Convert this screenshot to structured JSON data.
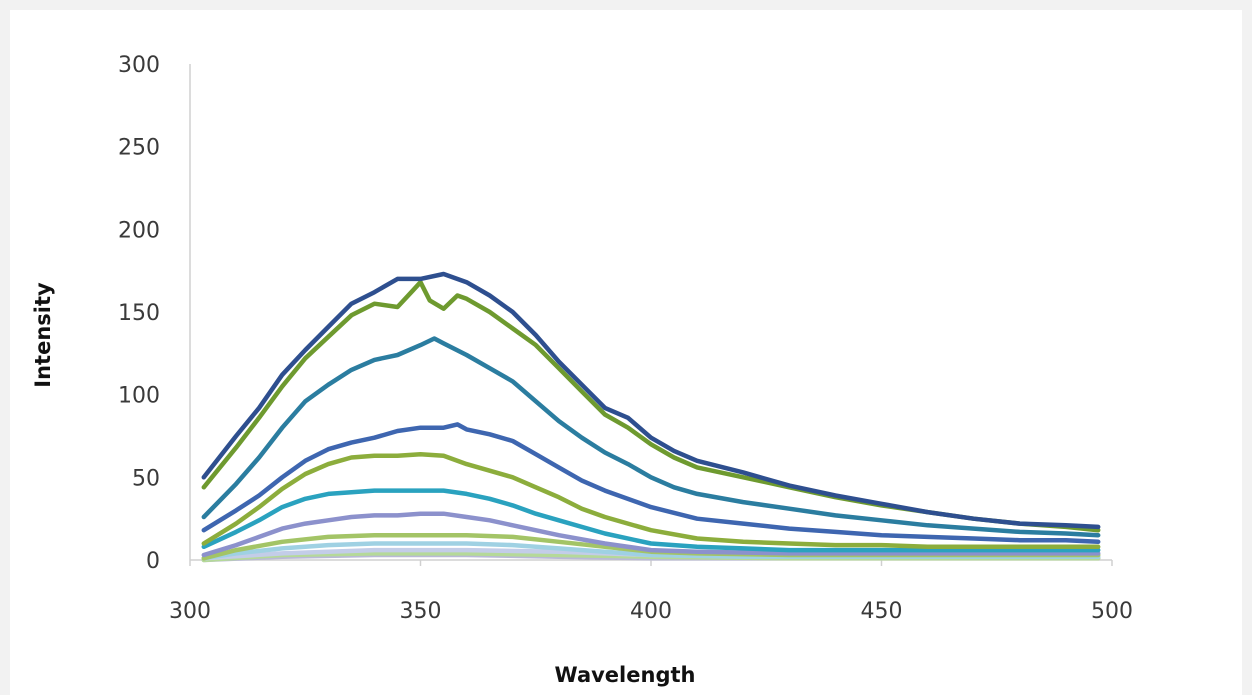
{
  "chart_data": {
    "type": "line",
    "title": "",
    "xlabel": "Wavelength",
    "ylabel": "Intensity",
    "xlim": [
      300,
      500
    ],
    "ylim": [
      0,
      300
    ],
    "xticks": [
      300,
      350,
      400,
      450,
      500
    ],
    "yticks": [
      0,
      50,
      100,
      150,
      200,
      250,
      300
    ],
    "grid": false,
    "legend": "none",
    "series": [
      {
        "color": "#2e4f8f",
        "x": [
          303,
          310,
          315,
          320,
          325,
          330,
          335,
          340,
          345,
          350,
          355,
          360,
          365,
          370,
          375,
          380,
          385,
          390,
          395,
          400,
          405,
          410,
          420,
          430,
          440,
          450,
          460,
          470,
          480,
          490,
          497
        ],
        "y": [
          50,
          75,
          92,
          112,
          127,
          141,
          155,
          162,
          170,
          170,
          173,
          168,
          160,
          150,
          136,
          120,
          106,
          92,
          86,
          74,
          66,
          60,
          53,
          45,
          39,
          34,
          29,
          25,
          22,
          21,
          20
        ]
      },
      {
        "color": "#6e9a2f",
        "x": [
          303,
          310,
          315,
          320,
          325,
          330,
          335,
          340,
          345,
          348,
          350,
          352,
          355,
          358,
          360,
          365,
          370,
          375,
          380,
          385,
          390,
          395,
          400,
          405,
          410,
          420,
          430,
          440,
          450,
          460,
          470,
          480,
          490,
          497
        ],
        "y": [
          44,
          68,
          86,
          105,
          122,
          135,
          148,
          155,
          153,
          162,
          168,
          157,
          152,
          160,
          158,
          150,
          140,
          130,
          116,
          102,
          88,
          80,
          70,
          62,
          56,
          50,
          44,
          38,
          33,
          29,
          25,
          22,
          20,
          18
        ]
      },
      {
        "color": "#2b7da0",
        "x": [
          303,
          310,
          315,
          320,
          325,
          330,
          335,
          340,
          345,
          350,
          353,
          355,
          360,
          365,
          370,
          375,
          380,
          385,
          390,
          395,
          400,
          405,
          410,
          420,
          430,
          440,
          450,
          460,
          470,
          480,
          490,
          497
        ],
        "y": [
          26,
          46,
          62,
          80,
          96,
          106,
          115,
          121,
          124,
          130,
          134,
          131,
          124,
          116,
          108,
          96,
          84,
          74,
          65,
          58,
          50,
          44,
          40,
          35,
          31,
          27,
          24,
          21,
          19,
          17,
          16,
          15
        ]
      },
      {
        "color": "#3e66b0",
        "x": [
          303,
          310,
          315,
          320,
          325,
          330,
          335,
          340,
          345,
          350,
          355,
          358,
          360,
          365,
          370,
          375,
          380,
          385,
          390,
          400,
          410,
          420,
          430,
          440,
          450,
          460,
          470,
          480,
          490,
          497
        ],
        "y": [
          18,
          30,
          39,
          50,
          60,
          67,
          71,
          74,
          78,
          80,
          80,
          82,
          79,
          76,
          72,
          64,
          56,
          48,
          42,
          32,
          25,
          22,
          19,
          17,
          15,
          14,
          13,
          12,
          12,
          11
        ]
      },
      {
        "color": "#8cad3c",
        "x": [
          303,
          310,
          315,
          320,
          325,
          330,
          335,
          340,
          345,
          350,
          355,
          360,
          365,
          370,
          375,
          380,
          385,
          390,
          400,
          410,
          420,
          430,
          440,
          450,
          460,
          470,
          480,
          490,
          497
        ],
        "y": [
          10,
          22,
          32,
          43,
          52,
          58,
          62,
          63,
          63,
          64,
          63,
          58,
          54,
          50,
          44,
          38,
          31,
          26,
          18,
          13,
          11,
          10,
          9,
          9,
          8,
          8,
          8,
          8,
          8
        ]
      },
      {
        "color": "#2aa2bf",
        "x": [
          303,
          310,
          315,
          320,
          325,
          330,
          335,
          340,
          345,
          350,
          355,
          360,
          365,
          370,
          375,
          380,
          390,
          400,
          410,
          420,
          430,
          440,
          450,
          460,
          470,
          480,
          490,
          497
        ],
        "y": [
          8,
          17,
          24,
          32,
          37,
          40,
          41,
          42,
          42,
          42,
          42,
          40,
          37,
          33,
          28,
          24,
          16,
          10,
          8,
          7,
          6,
          6,
          6,
          6,
          6,
          6,
          6,
          6
        ]
      },
      {
        "color": "#8c91cc",
        "x": [
          303,
          310,
          315,
          320,
          325,
          330,
          335,
          340,
          345,
          350,
          355,
          360,
          365,
          370,
          380,
          390,
          400,
          410,
          430,
          450,
          470,
          497
        ],
        "y": [
          3,
          9,
          14,
          19,
          22,
          24,
          26,
          27,
          27,
          28,
          28,
          26,
          24,
          21,
          15,
          10,
          6,
          5,
          4,
          4,
          4,
          4
        ]
      },
      {
        "color": "#a3c466",
        "x": [
          303,
          310,
          320,
          330,
          340,
          350,
          360,
          370,
          380,
          390,
          400,
          410,
          430,
          450,
          470,
          497
        ],
        "y": [
          1,
          6,
          11,
          14,
          15,
          15,
          15,
          14,
          11,
          8,
          5,
          4,
          3,
          3,
          3,
          3
        ]
      },
      {
        "color": "#9fd1e3",
        "x": [
          303,
          310,
          320,
          330,
          340,
          350,
          360,
          370,
          380,
          390,
          400,
          420,
          450,
          497
        ],
        "y": [
          1,
          4,
          7,
          9,
          10,
          10,
          10,
          9,
          7,
          5,
          3,
          2,
          2,
          2
        ]
      },
      {
        "color": "#c3cde8",
        "x": [
          303,
          320,
          340,
          360,
          380,
          400,
          430,
          460,
          497
        ],
        "y": [
          1,
          4,
          6,
          6,
          5,
          3,
          2,
          2,
          2
        ]
      },
      {
        "color": "#b5d999",
        "x": [
          303,
          320,
          340,
          360,
          380,
          400,
          430,
          460,
          497
        ],
        "y": [
          0,
          3,
          4,
          4,
          3,
          2,
          1,
          1,
          1
        ]
      },
      {
        "color": "#b9b9d6",
        "x": [
          303,
          320,
          340,
          360,
          380,
          400,
          430,
          460,
          497
        ],
        "y": [
          0,
          2,
          3,
          3,
          2,
          1,
          1,
          1,
          1
        ]
      }
    ]
  }
}
